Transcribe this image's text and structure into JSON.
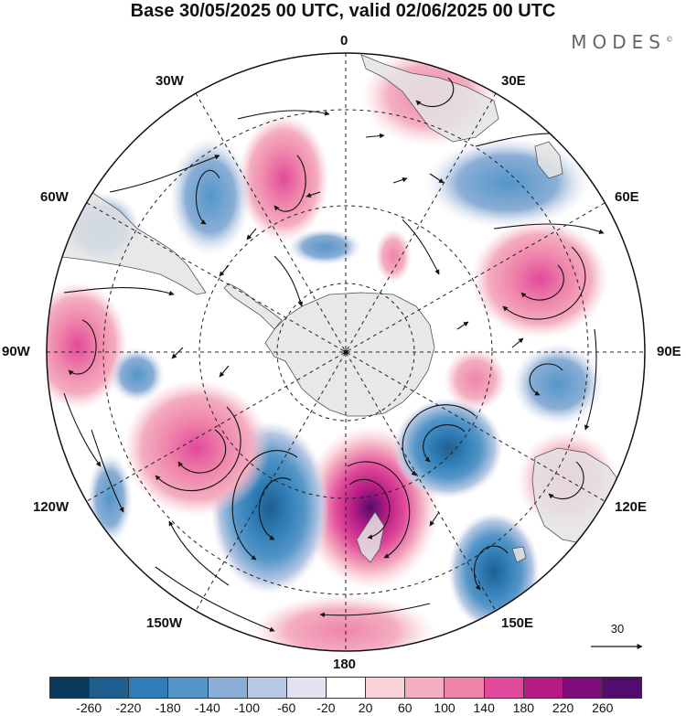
{
  "title": "Base 30/05/2025 00 UTC, valid 02/06/2025 00 UTC",
  "brand": {
    "text": "MODES",
    "mark": "©"
  },
  "longitude_labels": {
    "lon_0": "0",
    "lon_30e": "30E",
    "lon_60e": "60E",
    "lon_90e": "90E",
    "lon_120e": "120E",
    "lon_150e": "150E",
    "lon_180": "180",
    "lon_150w": "150W",
    "lon_120w": "120W",
    "lon_90w": "90W",
    "lon_60w": "60W",
    "lon_30w": "30W"
  },
  "reference_vector": {
    "value": "30"
  },
  "colorbar": {
    "colors": [
      "#0c3a5c",
      "#1e5f8f",
      "#2f7db6",
      "#5496c8",
      "#8aaed6",
      "#b8c8e4",
      "#e2e2f0",
      "#ffffff",
      "#f9d3d8",
      "#f4aec0",
      "#ef84ab",
      "#e14a9a",
      "#b71c84",
      "#7e0d7a",
      "#520c6e"
    ],
    "tick_labels": [
      "-260",
      "-220",
      "-180",
      "-140",
      "-100",
      "-60",
      "-20",
      "20",
      "60",
      "100",
      "140",
      "180",
      "220",
      "260"
    ]
  },
  "map": {
    "projection": "south polar stereographic",
    "graticule": "dashed meridians every 30 degrees and latitude circles",
    "anomaly_centers": [
      {
        "sign": "positive",
        "strength": 260,
        "location": "south of New Zealand"
      },
      {
        "sign": "negative",
        "strength": -240,
        "location": "Pacific sector 150W"
      },
      {
        "sign": "positive",
        "strength": 180,
        "location": "South Pacific 120W"
      },
      {
        "sign": "positive",
        "strength": 160,
        "location": "Indian Ocean 60E"
      },
      {
        "sign": "negative",
        "strength": -180,
        "location": "south of Australia"
      },
      {
        "sign": "negative",
        "strength": -180,
        "location": "Tasman Sea"
      },
      {
        "sign": "positive",
        "strength": 140,
        "location": "Atlantic 15W"
      },
      {
        "sign": "positive",
        "strength": 140,
        "location": "Pacific 90W"
      }
    ]
  }
}
